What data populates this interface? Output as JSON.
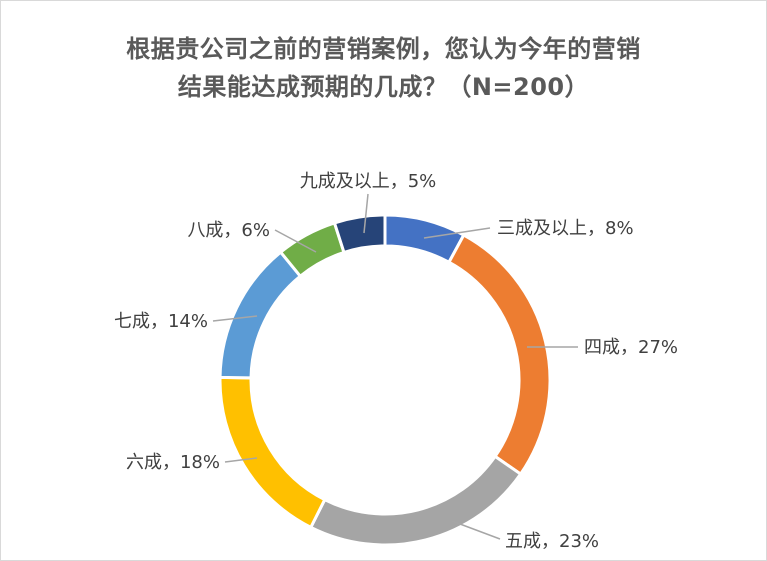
{
  "chart_data": {
    "type": "pie",
    "variant": "donut",
    "title_lines": [
      "根据贵公司之前的营销案例，您认为今年的营销",
      "结果能达成预期的几成？（N=200）"
    ],
    "slices": [
      {
        "label": "三成及以上，8%",
        "value": 8,
        "color": "#4472C4"
      },
      {
        "label": "四成，27%",
        "value": 27,
        "color": "#ED7D31"
      },
      {
        "label": "五成，23%",
        "value": 23,
        "color": "#A5A5A5"
      },
      {
        "label": "六成，18%",
        "value": 18,
        "color": "#FFC000"
      },
      {
        "label": "七成，14%",
        "value": 14,
        "color": "#5B9BD5"
      },
      {
        "label": "八成，6%",
        "value": 6,
        "color": "#70AD47"
      },
      {
        "label": "九成及以上，5%",
        "value": 5,
        "color": "#264478"
      }
    ],
    "legend": "none"
  }
}
